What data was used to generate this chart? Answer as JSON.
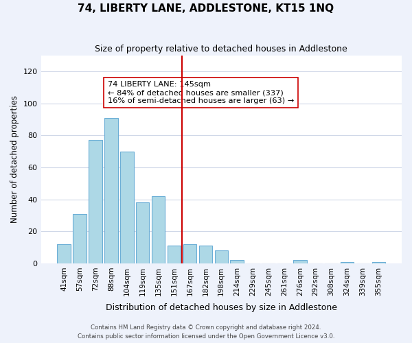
{
  "title": "74, LIBERTY LANE, ADDLESTONE, KT15 1NQ",
  "subtitle": "Size of property relative to detached houses in Addlestone",
  "xlabel": "Distribution of detached houses by size in Addlestone",
  "ylabel": "Number of detached properties",
  "bar_labels": [
    "41sqm",
    "57sqm",
    "72sqm",
    "88sqm",
    "104sqm",
    "119sqm",
    "135sqm",
    "151sqm",
    "167sqm",
    "182sqm",
    "198sqm",
    "214sqm",
    "229sqm",
    "245sqm",
    "261sqm",
    "276sqm",
    "292sqm",
    "308sqm",
    "324sqm",
    "339sqm",
    "355sqm"
  ],
  "bar_values": [
    12,
    31,
    77,
    91,
    70,
    38,
    42,
    11,
    12,
    11,
    8,
    2,
    0,
    0,
    0,
    2,
    0,
    0,
    1,
    0,
    1
  ],
  "bar_color": "#add8e6",
  "bar_edge_color": "#6baed6",
  "vline_x": 7.5,
  "vline_color": "#cc0000",
  "annotation_line1": "74 LIBERTY LANE: 145sqm",
  "annotation_line2": "← 84% of detached houses are smaller (337)",
  "annotation_line3": "16% of semi-detached houses are larger (63) →",
  "ylim": [
    0,
    130
  ],
  "yticks": [
    0,
    20,
    40,
    60,
    80,
    100,
    120
  ],
  "footer_line1": "Contains HM Land Registry data © Crown copyright and database right 2024.",
  "footer_line2": "Contains public sector information licensed under the Open Government Licence v3.0.",
  "bg_color": "#eef2fb",
  "plot_bg_color": "#ffffff",
  "grid_color": "#d0d8e8"
}
